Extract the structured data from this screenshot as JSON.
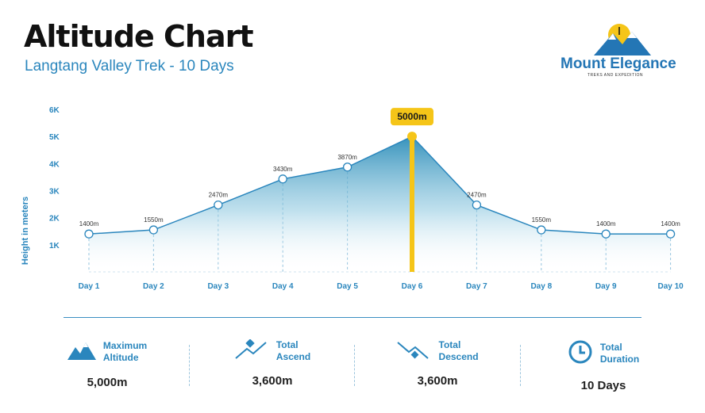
{
  "header": {
    "title": "Altitude Chart",
    "subtitle": "Langtang Valley Trek - 10 Days"
  },
  "logo": {
    "name": "Mount Elegance",
    "tagline": "TREKS AND EXPEDITION"
  },
  "chart_data": {
    "type": "area",
    "title": "Altitude Chart",
    "ylabel": "Height in meters",
    "categories": [
      "Day 1",
      "Day 2",
      "Day 3",
      "Day 4",
      "Day 5",
      "Day 6",
      "Day 7",
      "Day 8",
      "Day 9",
      "Day 10"
    ],
    "values": [
      1400,
      1550,
      2470,
      3430,
      3870,
      5000,
      2470,
      1550,
      1400,
      1400
    ],
    "data_labels": [
      "1400m",
      "1550m",
      "2470m",
      "3430m",
      "3870m",
      "5000m",
      "2470m",
      "1550m",
      "1400m",
      "1400m"
    ],
    "y_ticks": [
      "1K",
      "2K",
      "3K",
      "4K",
      "5K",
      "6K"
    ],
    "ylim": [
      0,
      6000
    ],
    "peak_label": "5000m",
    "colors": {
      "line": "#2a86bd",
      "peak": "#f5c518",
      "fill": "#4aa3c9"
    }
  },
  "stats": [
    {
      "label1": "Maximum",
      "label2": "Altitude",
      "value": "5,000m",
      "icon": "mountain-icon"
    },
    {
      "label1": "Total",
      "label2": "Ascend",
      "value": "3,600m",
      "icon": "ascend-icon"
    },
    {
      "label1": "Total",
      "label2": "Descend",
      "value": "3,600m",
      "icon": "descend-icon"
    },
    {
      "label1": "Total",
      "label2": "Duration",
      "value": "10 Days",
      "icon": "clock-icon"
    }
  ]
}
